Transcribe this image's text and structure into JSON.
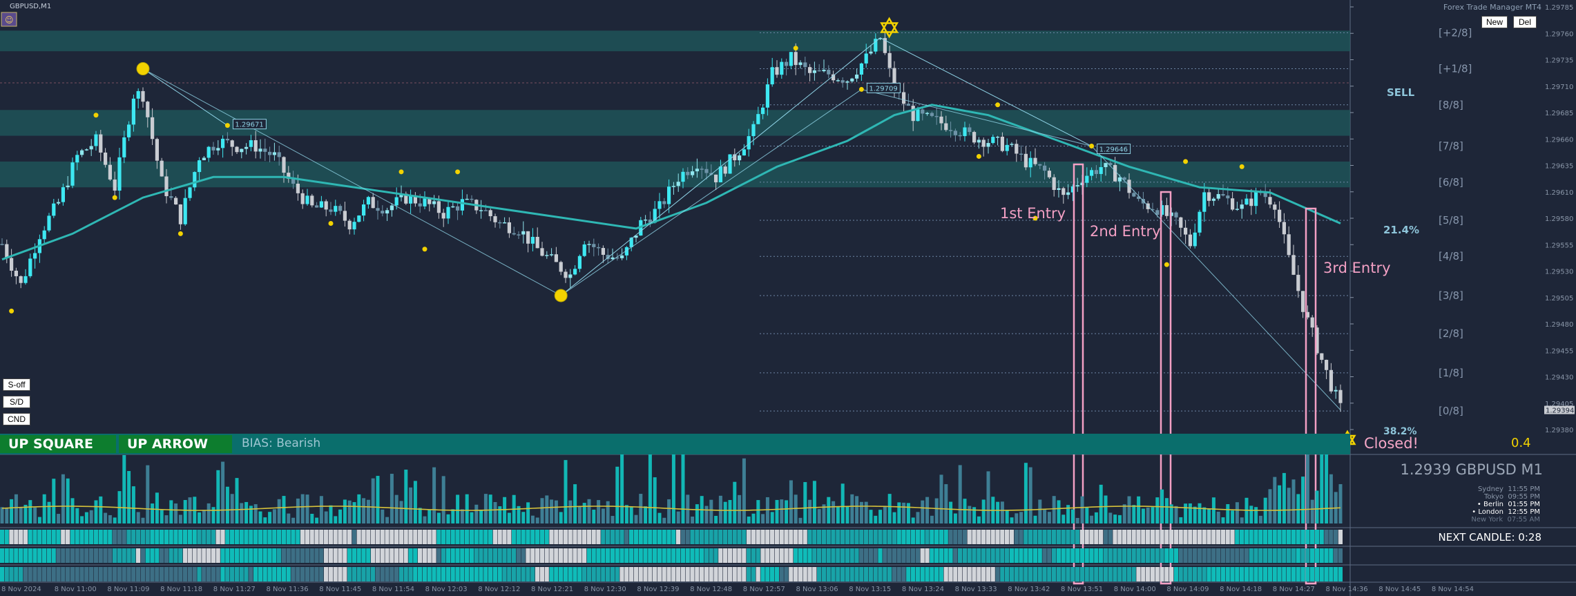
{
  "chart_window": {
    "symbol_title": "GBPUSD,M1",
    "trade_manager_label": "Forex Trade Manager MT4"
  },
  "buttons": {
    "new": "New",
    "del": "Del",
    "s_off": "S-off",
    "s_d": "S/D",
    "cnd": "CND"
  },
  "banner": {
    "up_square": "UP SQUARE",
    "up_arrow": "UP ARROW",
    "bias": "BIAS: Bearish",
    "closed": "Closed!",
    "ratio": "0.4"
  },
  "annotations": {
    "sell": "SELL",
    "pct_top": "21.4%",
    "pct_bottom": "38.2%",
    "entry1": "1st Entry",
    "entry2": "2nd Entry",
    "entry3": "3rd Entry"
  },
  "swing_labels": [
    "1.29671",
    "1.29709",
    "1.29646"
  ],
  "info_panel": {
    "price_symbol": "1.2939 GBPUSD M1",
    "clocks": [
      {
        "city": "Sydney",
        "time": "11:55 PM"
      },
      {
        "city": "Tokyo",
        "time": "09:55 PM"
      },
      {
        "city": "Berlin",
        "time": "01:55 PM"
      },
      {
        "city": "London",
        "time": "12:55 PM"
      },
      {
        "city": "New York",
        "time": "07:55 AM"
      }
    ],
    "next_candle": "NEXT CANDLE: 0:28"
  },
  "colors": {
    "background": "#1e2638",
    "bull_candle": "#3ee8f2",
    "bear_candle": "#c9ccd2",
    "neutral_candle": "#6e93a8",
    "ma_line": "#2fb7b4",
    "banner": "#0a6e6c",
    "green_button": "#0d7d2e",
    "swing_dot": "#f2d200",
    "entry_box": "#f3a0c4"
  },
  "icons": {
    "top_star": "star-of-david-icon",
    "closed_star": "star-of-david-icon",
    "expert_face": "expert-advisor-icon"
  },
  "chart_data": {
    "type": "candlestick",
    "symbol": "GBPUSD",
    "timeframe": "M1",
    "ylim": [
      1.29375,
      1.29785
    ],
    "y_ticks": [
      "1.29785",
      "1.29760",
      "1.29735",
      "1.29710",
      "1.29685",
      "1.29660",
      "1.29635",
      "1.29610",
      "1.29580",
      "1.29555",
      "1.29530",
      "1.29505",
      "1.29480",
      "1.29455",
      "1.29430",
      "1.29405",
      "1.29380"
    ],
    "current_price": "1.29394",
    "x_ticks": [
      "8 Nov 2024",
      "8 Nov 11:00",
      "8 Nov 11:09",
      "8 Nov 11:18",
      "8 Nov 11:27",
      "8 Nov 11:36",
      "8 Nov 11:45",
      "8 Nov 11:54",
      "8 Nov 12:03",
      "8 Nov 12:12",
      "8 Nov 12:21",
      "8 Nov 12:30",
      "8 Nov 12:39",
      "8 Nov 12:48",
      "8 Nov 12:57",
      "8 Nov 13:06",
      "8 Nov 13:15",
      "8 Nov 13:24",
      "8 Nov 13:33",
      "8 Nov 13:42",
      "8 Nov 13:51",
      "8 Nov 14:00",
      "8 Nov 14:09",
      "8 Nov 14:18",
      "8 Nov 14:27",
      "8 Nov 14:36",
      "8 Nov 14:45",
      "8 Nov 14:54"
    ],
    "murrey_levels": [
      {
        "label": "[+2/8]",
        "price": 1.2976
      },
      {
        "label": "[+1/8]",
        "price": 1.29725
      },
      {
        "label": "[8/8]",
        "price": 1.2969
      },
      {
        "label": "[7/8]",
        "price": 1.2965
      },
      {
        "label": "[6/8]",
        "price": 1.29615
      },
      {
        "label": "[5/8]",
        "price": 1.29578
      },
      {
        "label": "[4/8]",
        "price": 1.29543
      },
      {
        "label": "[3/8]",
        "price": 1.29505
      },
      {
        "label": "[2/8]",
        "price": 1.29468
      },
      {
        "label": "[1/8]",
        "price": 1.2943
      },
      {
        "label": "[0/8]",
        "price": 1.29393
      }
    ],
    "zones": [
      {
        "from": 1.29742,
        "to": 1.29762
      },
      {
        "from": 1.2966,
        "to": 1.29685
      },
      {
        "from": 1.2961,
        "to": 1.29635
      }
    ],
    "close_path": [
      [
        0,
        1.29555
      ],
      [
        4,
        1.29515
      ],
      [
        8,
        1.29565
      ],
      [
        12,
        1.29595
      ],
      [
        16,
        1.2964
      ],
      [
        20,
        1.29655
      ],
      [
        24,
        1.2961
      ],
      [
        28,
        1.297
      ],
      [
        30,
        1.297
      ],
      [
        34,
        1.29615
      ],
      [
        38,
        1.2958
      ],
      [
        42,
        1.2964
      ],
      [
        46,
        1.29655
      ],
      [
        50,
        1.2965
      ],
      [
        54,
        1.2965
      ],
      [
        58,
        1.2964
      ],
      [
        62,
        1.2961
      ],
      [
        66,
        1.2959
      ],
      [
        70,
        1.2959
      ],
      [
        74,
        1.29575
      ],
      [
        78,
        1.29595
      ],
      [
        82,
        1.2959
      ],
      [
        86,
        1.296
      ],
      [
        90,
        1.29595
      ],
      [
        94,
        1.29585
      ],
      [
        98,
        1.29595
      ],
      [
        102,
        1.2959
      ],
      [
        106,
        1.29575
      ],
      [
        110,
        1.2957
      ],
      [
        114,
        1.2955
      ],
      [
        118,
        1.29535
      ],
      [
        121,
        1.29525
      ],
      [
        124,
        1.2956
      ],
      [
        128,
        1.29545
      ],
      [
        132,
        1.2954
      ],
      [
        136,
        1.29575
      ],
      [
        140,
        1.2959
      ],
      [
        144,
        1.2962
      ],
      [
        148,
        1.29635
      ],
      [
        152,
        1.2962
      ],
      [
        156,
        1.2964
      ],
      [
        160,
        1.29665
      ],
      [
        164,
        1.2972
      ],
      [
        168,
        1.29735
      ],
      [
        172,
        1.2972
      ],
      [
        176,
        1.2972
      ],
      [
        180,
        1.29715
      ],
      [
        184,
        1.29735
      ],
      [
        187,
        1.29755
      ],
      [
        190,
        1.29705
      ],
      [
        194,
        1.2968
      ],
      [
        198,
        1.29675
      ],
      [
        202,
        1.2967
      ],
      [
        206,
        1.2966
      ],
      [
        210,
        1.29655
      ],
      [
        214,
        1.2965
      ],
      [
        218,
        1.29635
      ],
      [
        222,
        1.29625
      ],
      [
        226,
        1.296
      ],
      [
        230,
        1.2962
      ],
      [
        234,
        1.2963
      ],
      [
        238,
        1.2962
      ],
      [
        242,
        1.29595
      ],
      [
        246,
        1.2959
      ],
      [
        250,
        1.29575
      ],
      [
        253,
        1.29555
      ],
      [
        256,
        1.29605
      ],
      [
        260,
        1.296
      ],
      [
        264,
        1.2959
      ],
      [
        268,
        1.29605
      ],
      [
        271,
        1.29595
      ],
      [
        274,
        1.2954
      ],
      [
        278,
        1.2948
      ],
      [
        282,
        1.2943
      ],
      [
        285,
        1.29395
      ]
    ],
    "moving_average": [
      [
        0,
        1.2954
      ],
      [
        15,
        1.29565
      ],
      [
        30,
        1.296
      ],
      [
        45,
        1.2962
      ],
      [
        60,
        1.2962
      ],
      [
        75,
        1.2961
      ],
      [
        90,
        1.296
      ],
      [
        105,
        1.2959
      ],
      [
        120,
        1.2958
      ],
      [
        135,
        1.2957
      ],
      [
        150,
        1.29595
      ],
      [
        165,
        1.2963
      ],
      [
        180,
        1.29655
      ],
      [
        190,
        1.2968
      ],
      [
        198,
        1.2969
      ],
      [
        210,
        1.2968
      ],
      [
        225,
        1.29655
      ],
      [
        240,
        1.2963
      ],
      [
        255,
        1.2961
      ],
      [
        270,
        1.29605
      ],
      [
        285,
        1.29575
      ]
    ],
    "swing_points": [
      {
        "i": 30,
        "price": 1.29725,
        "big": true
      },
      {
        "i": 119,
        "price": 1.29505,
        "big": true
      },
      {
        "i": 2,
        "price": 1.2949
      },
      {
        "i": 20,
        "price": 1.2968
      },
      {
        "i": 24,
        "price": 1.296
      },
      {
        "i": 38,
        "price": 1.29565
      },
      {
        "i": 48,
        "price": 1.2967
      },
      {
        "i": 70,
        "price": 1.29575
      },
      {
        "i": 85,
        "price": 1.29625
      },
      {
        "i": 90,
        "price": 1.2955
      },
      {
        "i": 97,
        "price": 1.29625
      },
      {
        "i": 169,
        "price": 1.29745
      },
      {
        "i": 183,
        "price": 1.29705
      },
      {
        "i": 208,
        "price": 1.2964
      },
      {
        "i": 212,
        "price": 1.2969
      },
      {
        "i": 220,
        "price": 1.2958
      },
      {
        "i": 232,
        "price": 1.2965
      },
      {
        "i": 248,
        "price": 1.29535
      },
      {
        "i": 252,
        "price": 1.29635
      },
      {
        "i": 264,
        "price": 1.2963
      }
    ]
  }
}
